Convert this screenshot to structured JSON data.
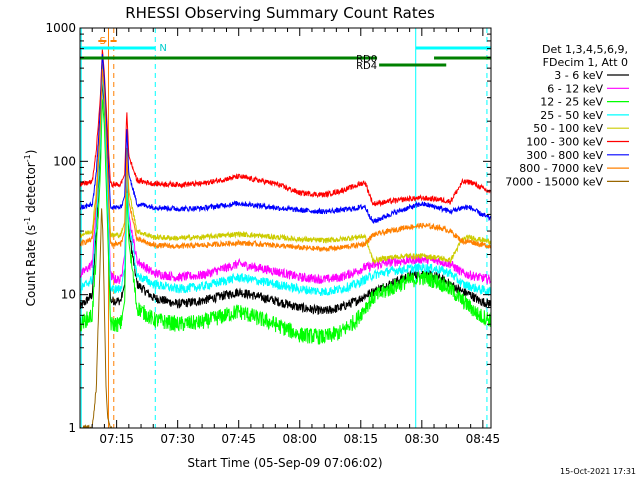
{
  "chart_data": {
    "type": "line",
    "title": "RHESSI Observing Summary Count Rates",
    "xlabel": "Start Time (05-Sep-09 07:06:02)",
    "ylabel": "Count Rate (s⁻¹ detector⁻¹)",
    "ylabel_main": "Count Rate (s",
    "ylabel_sup1": "-1",
    "ylabel_mid": " detector",
    "ylabel_sup2": "-1",
    "ylabel_end": ")",
    "yscale": "log",
    "ylim": [
      1,
      1000
    ],
    "xlim_minutes": [
      0,
      101
    ],
    "xticks": [
      {
        "minutes": 9,
        "label": "07:15"
      },
      {
        "minutes": 24,
        "label": "07:30"
      },
      {
        "minutes": 39,
        "label": "07:45"
      },
      {
        "minutes": 54,
        "label": "08:00"
      },
      {
        "minutes": 69,
        "label": "08:15"
      },
      {
        "minutes": 84,
        "label": "08:30"
      },
      {
        "minutes": 99,
        "label": "08:45"
      }
    ],
    "yticks": [
      {
        "value": 1,
        "label": "1"
      },
      {
        "value": 10,
        "label": "10"
      },
      {
        "value": 100,
        "label": "100"
      },
      {
        "value": 1000,
        "label": "1000"
      }
    ],
    "legend": {
      "placement": "top-right",
      "header": [
        "Det 1,3,4,5,6,9,",
        "FDecim 1, Att 0"
      ]
    },
    "series": [
      {
        "name": "3 - 6 keV",
        "color": "#000000",
        "x": [
          0,
          3,
          4,
          5,
          5.5,
          6,
          6.8,
          7.5,
          8.5,
          10,
          11,
          11.5,
          12,
          14,
          18,
          24,
          30,
          39,
          48,
          54,
          60,
          64,
          68,
          70,
          72,
          76,
          80,
          84,
          88,
          91,
          94,
          96,
          98,
          101
        ],
        "y": [
          8,
          10,
          30,
          120,
          400,
          250,
          40,
          9,
          9,
          9,
          12,
          80,
          30,
          12,
          9.5,
          8.5,
          9,
          10.5,
          9,
          8,
          7.5,
          8,
          9,
          9.8,
          10.5,
          12,
          13.5,
          14.5,
          13.5,
          12,
          10.5,
          10,
          9,
          8.5
        ]
      },
      {
        "name": "6 - 12 keV",
        "color": "#ff00ff",
        "x": [
          0,
          3,
          4,
          5,
          5.5,
          6,
          6.8,
          7.5,
          8.5,
          10,
          11,
          11.5,
          12,
          14,
          18,
          24,
          30,
          39,
          48,
          54,
          60,
          64,
          68,
          70,
          72,
          76,
          80,
          84,
          88,
          91,
          94,
          96,
          98,
          101
        ],
        "y": [
          14,
          17,
          45,
          160,
          500,
          300,
          60,
          14,
          13,
          13,
          20,
          100,
          40,
          18,
          14.5,
          13.5,
          14,
          17,
          15,
          13.5,
          13,
          13.5,
          15,
          16,
          16.5,
          17.5,
          18,
          18.5,
          18,
          17,
          14.5,
          14,
          13.5,
          13
        ]
      },
      {
        "name": "12 - 25 keV",
        "color": "#00ff00",
        "x": [
          0,
          3,
          4,
          5,
          5.5,
          6,
          6.8,
          7.5,
          8.5,
          10,
          11,
          11.5,
          12,
          14,
          18,
          24,
          30,
          39,
          48,
          54,
          60,
          64,
          68,
          70,
          72,
          76,
          80,
          84,
          88,
          91,
          94,
          96,
          98,
          101
        ],
        "y": [
          6,
          7,
          20,
          80,
          300,
          180,
          30,
          6,
          6,
          6,
          9,
          60,
          25,
          8,
          6.5,
          6,
          6.2,
          7.5,
          6,
          5,
          4.8,
          5.2,
          6.5,
          8,
          9.5,
          11,
          12.5,
          13.5,
          12.5,
          11,
          9,
          8,
          7,
          6.5
        ]
      },
      {
        "name": "25 - 50 keV",
        "color": "#00ffff",
        "x": [
          0,
          3,
          4,
          5,
          5.5,
          6,
          6.8,
          7.5,
          8.5,
          10,
          11,
          11.5,
          12,
          14,
          18,
          24,
          30,
          39,
          48,
          54,
          60,
          64,
          68,
          70,
          72,
          76,
          80,
          84,
          88,
          91,
          94,
          96,
          98,
          101
        ],
        "y": [
          11,
          13,
          35,
          140,
          450,
          280,
          50,
          11,
          11,
          11,
          16,
          90,
          35,
          14,
          12,
          11,
          11.5,
          13.5,
          12,
          11,
          10.5,
          11,
          12,
          13,
          14,
          15,
          15.5,
          16,
          15.5,
          14.5,
          12,
          11.5,
          11,
          10.5
        ]
      },
      {
        "name": "50 - 100 keV",
        "color": "#cccc00",
        "x": [
          0,
          3,
          4,
          5,
          5.5,
          6,
          6.8,
          7.5,
          8.5,
          10,
          11,
          11.5,
          12,
          14,
          18,
          24,
          30,
          39,
          48,
          54,
          60,
          64,
          68,
          70,
          72,
          76,
          80,
          84,
          88,
          91,
          94,
          96,
          98,
          101
        ],
        "y": [
          28,
          30,
          60,
          200,
          550,
          350,
          90,
          28,
          28,
          28,
          35,
          130,
          60,
          30,
          27,
          26.5,
          27,
          28.5,
          27,
          26,
          25.5,
          26,
          27,
          27.5,
          18,
          19,
          19.5,
          19.5,
          19,
          18,
          26,
          27,
          26,
          25
        ]
      },
      {
        "name": "100 - 300 keV",
        "color": "#ff0000",
        "x": [
          0,
          3,
          4,
          5,
          5.5,
          6,
          6.8,
          7.5,
          8.5,
          10,
          11,
          11.5,
          12,
          14,
          18,
          24,
          30,
          39,
          48,
          54,
          60,
          64,
          68,
          70,
          72,
          76,
          80,
          84,
          88,
          91,
          94,
          96,
          98,
          101
        ],
        "y": [
          67,
          70,
          120,
          300,
          700,
          450,
          160,
          67,
          67,
          67,
          80,
          240,
          110,
          72,
          68,
          67,
          68,
          77,
          68,
          58,
          56,
          60,
          66,
          70,
          48,
          50,
          52,
          53,
          52,
          50,
          70,
          70,
          65,
          58
        ]
      },
      {
        "name": "300 - 800 keV",
        "color": "#0000ff",
        "x": [
          0,
          3,
          4,
          5,
          5.5,
          6,
          6.8,
          7.5,
          8.5,
          10,
          11,
          11.5,
          12,
          14,
          18,
          24,
          30,
          39,
          48,
          54,
          60,
          64,
          68,
          70,
          72,
          76,
          80,
          84,
          88,
          91,
          94,
          96,
          98,
          101
        ],
        "y": [
          45,
          47,
          80,
          250,
          650,
          400,
          120,
          46,
          45,
          45,
          55,
          180,
          80,
          48,
          45.5,
          44,
          44.5,
          48.5,
          45,
          43,
          42,
          43,
          44.5,
          46,
          35,
          40,
          44,
          48,
          45,
          42,
          45,
          45,
          41,
          37
        ]
      },
      {
        "name": "800 - 7000 keV",
        "color": "#ff8000",
        "x": [
          0,
          3,
          4,
          5,
          5.5,
          6,
          6.8,
          7.5,
          8.5,
          10,
          11,
          11.5,
          12,
          14,
          18,
          24,
          30,
          39,
          48,
          54,
          60,
          64,
          68,
          70,
          72,
          76,
          80,
          84,
          88,
          91,
          94,
          96,
          98,
          101
        ],
        "y": [
          24,
          26,
          50,
          180,
          500,
          320,
          80,
          24,
          24,
          24,
          30,
          110,
          50,
          26,
          23.5,
          23,
          23.5,
          24.5,
          23.5,
          22.5,
          22,
          22.5,
          23.5,
          24,
          28,
          30,
          32,
          33,
          32,
          30,
          25,
          25,
          24,
          23
        ]
      },
      {
        "name": "7000 - 15000 keV",
        "color": "#996600",
        "x": [
          0,
          3,
          4,
          5,
          5.3,
          5.6,
          6,
          6.4,
          6.8,
          7.5,
          8
        ],
        "y": [
          1,
          1,
          2,
          20,
          45,
          30,
          8,
          2,
          1.2,
          1,
          1
        ]
      }
    ],
    "segments": {
      "night": {
        "label": "N",
        "color": "#00ffff",
        "ranges": [
          [
            0,
            18.5
          ],
          [
            82.5,
            101
          ]
        ]
      },
      "rd0": {
        "label": "RD0",
        "color": "#008000",
        "ranges": [
          [
            0,
            73
          ],
          [
            87,
            101
          ]
        ]
      },
      "rd4": {
        "label": "RD4",
        "color": "#008000",
        "ranges": [
          [
            73.5,
            90
          ]
        ]
      },
      "s": {
        "label": "S",
        "color": "#ff8000",
        "ranges": [
          [
            4.5,
            6.5
          ],
          [
            7.5,
            9
          ]
        ]
      }
    },
    "vlines": [
      {
        "minutes": 0.3,
        "color": "#00ffff",
        "style": "solid"
      },
      {
        "minutes": 18.5,
        "color": "#00ffff",
        "style": "dashed"
      },
      {
        "minutes": 82.5,
        "color": "#00ffff",
        "style": "solid"
      },
      {
        "minutes": 100,
        "color": "#00ffff",
        "style": "dashed"
      },
      {
        "minutes": 7,
        "color": "#ff8000",
        "style": "solid"
      },
      {
        "minutes": 8.3,
        "color": "#ff8000",
        "style": "dashed"
      }
    ]
  },
  "timestamp": "15-Oct-2021 17:31"
}
